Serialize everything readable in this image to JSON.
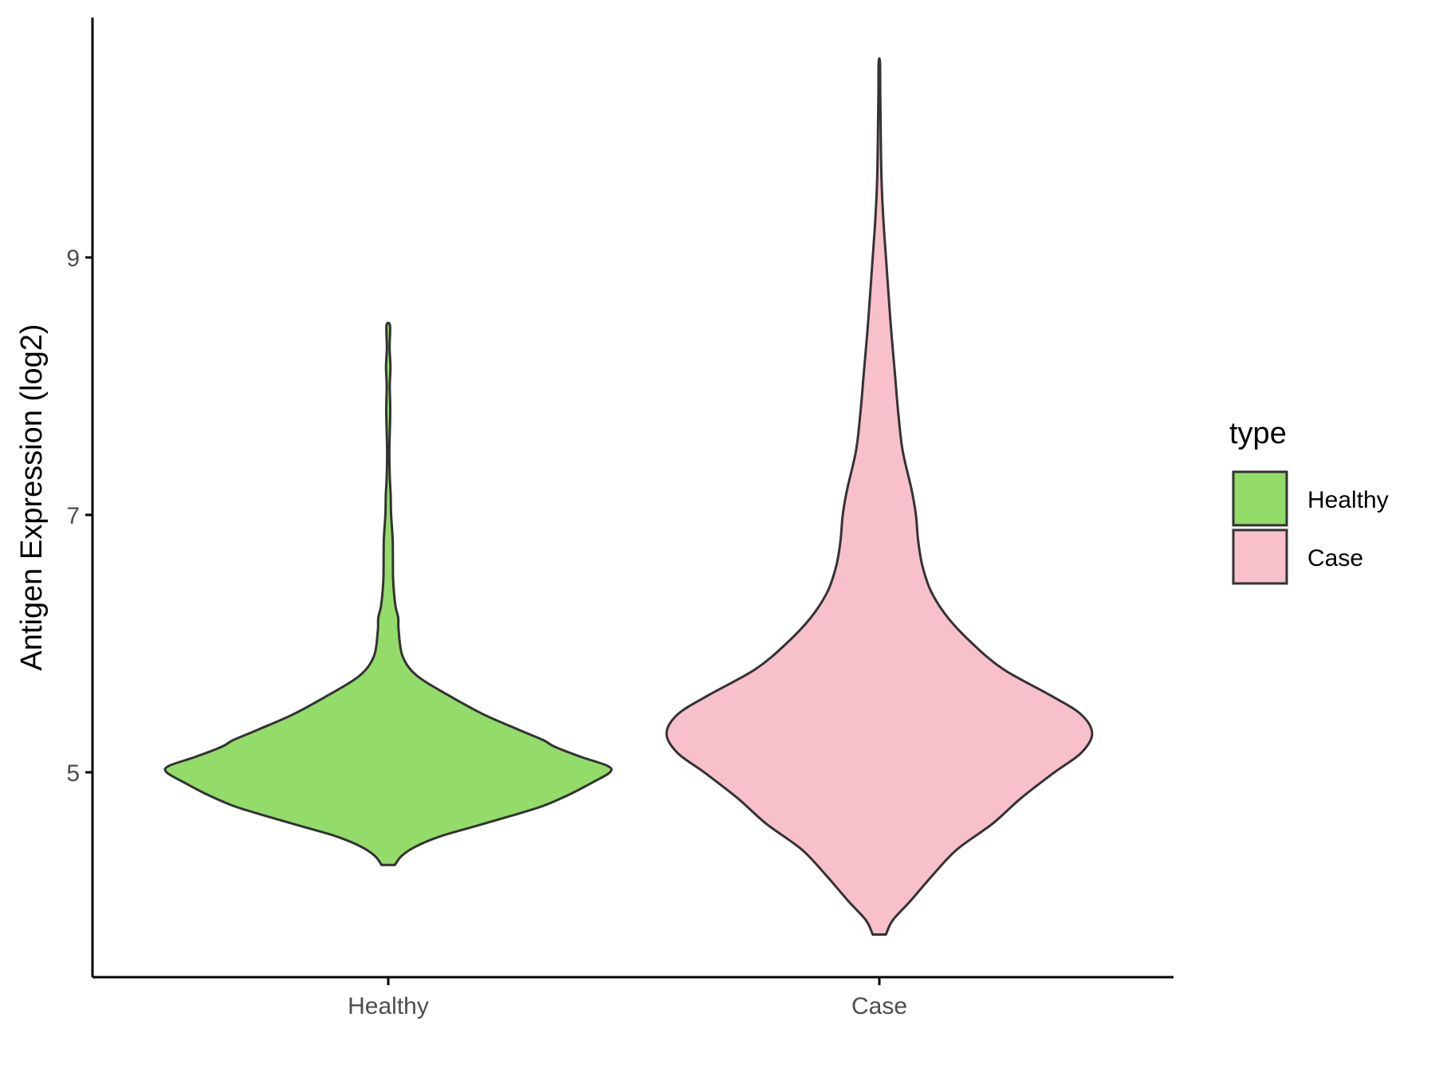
{
  "chart_data": {
    "type": "violin",
    "xlabel": "",
    "ylabel": "Antigen Expression (log2)",
    "ylim": [
      3.55,
      10.95
    ],
    "yticks": [
      5,
      7,
      9
    ],
    "categories": [
      "Healthy",
      "Case"
    ],
    "grid": false,
    "legend": {
      "title": "type",
      "position": "right",
      "entries": [
        {
          "label": "Healthy",
          "color": "#93dc6a"
        },
        {
          "label": "Case",
          "color": "#f8c0cb"
        }
      ]
    },
    "series": [
      {
        "name": "Healthy",
        "color": "#93dc6a",
        "min": 4.28,
        "max": 8.47,
        "profile": [
          [
            4.28,
            0.03
          ],
          [
            4.35,
            0.06
          ],
          [
            4.42,
            0.12
          ],
          [
            4.5,
            0.23
          ],
          [
            4.58,
            0.39
          ],
          [
            4.66,
            0.55
          ],
          [
            4.74,
            0.7
          ],
          [
            4.83,
            0.82
          ],
          [
            4.92,
            0.92
          ],
          [
            5.0,
            1.0
          ],
          [
            5.05,
            0.99
          ],
          [
            5.12,
            0.87
          ],
          [
            5.2,
            0.75
          ],
          [
            5.25,
            0.7
          ],
          [
            5.33,
            0.59
          ],
          [
            5.45,
            0.43
          ],
          [
            5.6,
            0.27
          ],
          [
            5.75,
            0.13
          ],
          [
            5.9,
            0.065
          ],
          [
            6.1,
            0.047
          ],
          [
            6.2,
            0.045
          ],
          [
            6.3,
            0.032
          ],
          [
            6.5,
            0.022
          ],
          [
            6.8,
            0.02
          ],
          [
            7.0,
            0.013
          ],
          [
            7.15,
            0.011
          ],
          [
            7.3,
            0.007
          ],
          [
            7.5,
            0.005
          ],
          [
            7.8,
            0.009
          ],
          [
            8.0,
            0.007
          ],
          [
            8.15,
            0.01
          ],
          [
            8.3,
            0.006
          ],
          [
            8.47,
            0.008
          ]
        ]
      },
      {
        "name": "Case",
        "color": "#f8c0cb",
        "min": 3.74,
        "max": 10.52,
        "profile": [
          [
            3.74,
            0.03
          ],
          [
            3.85,
            0.06
          ],
          [
            4.0,
            0.14
          ],
          [
            4.2,
            0.24
          ],
          [
            4.4,
            0.35
          ],
          [
            4.6,
            0.51
          ],
          [
            4.8,
            0.64
          ],
          [
            5.0,
            0.79
          ],
          [
            5.15,
            0.91
          ],
          [
            5.3,
            0.96
          ],
          [
            5.45,
            0.91
          ],
          [
            5.6,
            0.77
          ],
          [
            5.8,
            0.56
          ],
          [
            6.0,
            0.42
          ],
          [
            6.2,
            0.31
          ],
          [
            6.4,
            0.235
          ],
          [
            6.6,
            0.195
          ],
          [
            6.8,
            0.175
          ],
          [
            7.0,
            0.165
          ],
          [
            7.2,
            0.145
          ],
          [
            7.5,
            0.105
          ],
          [
            7.8,
            0.085
          ],
          [
            8.1,
            0.07
          ],
          [
            8.4,
            0.055
          ],
          [
            8.7,
            0.042
          ],
          [
            9.0,
            0.03
          ],
          [
            9.3,
            0.018
          ],
          [
            9.6,
            0.01
          ],
          [
            10.0,
            0.006
          ],
          [
            10.3,
            0.004
          ],
          [
            10.52,
            0.003
          ]
        ]
      }
    ]
  }
}
